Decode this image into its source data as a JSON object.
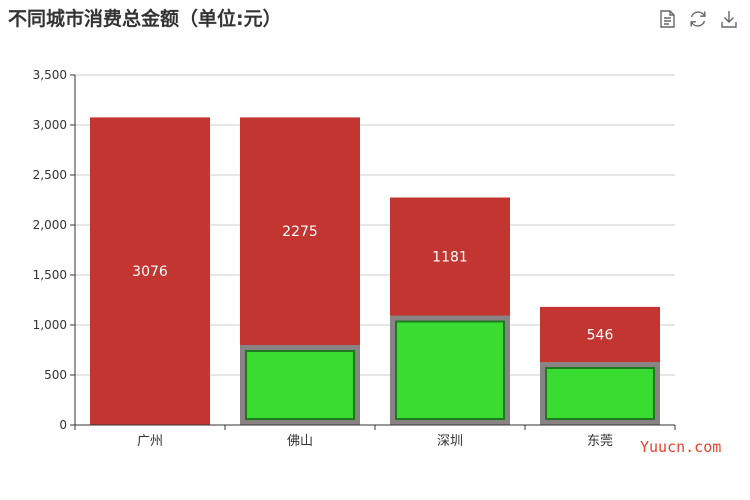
{
  "chart_data": {
    "type": "bar",
    "title": "不同城市消费总金额（单位:元）",
    "categories": [
      "广州",
      "佛山",
      "深圳",
      "东莞"
    ],
    "series": [
      {
        "values": [
          3076,
          3076,
          2275,
          1181
        ],
        "labels": [
          "3076",
          "2275",
          "1181",
          "546"
        ],
        "color": "#c23531"
      },
      {
        "values": [
          0,
          800,
          1095,
          630
        ],
        "color": "#33e533",
        "border_color": "#888888"
      }
    ],
    "ylim": [
      0,
      3500
    ],
    "yticks": [
      0,
      500,
      1000,
      1500,
      2000,
      2500,
      3000,
      3500
    ],
    "ytick_labels": [
      "0",
      "500",
      "1,000",
      "1,500",
      "2,000",
      "2,500",
      "3,000",
      "3,500"
    ],
    "grid": true
  },
  "toolbox": {
    "icons": [
      "data-view-icon",
      "restore-icon",
      "save-image-icon"
    ]
  },
  "watermark": "Yuucn.com"
}
